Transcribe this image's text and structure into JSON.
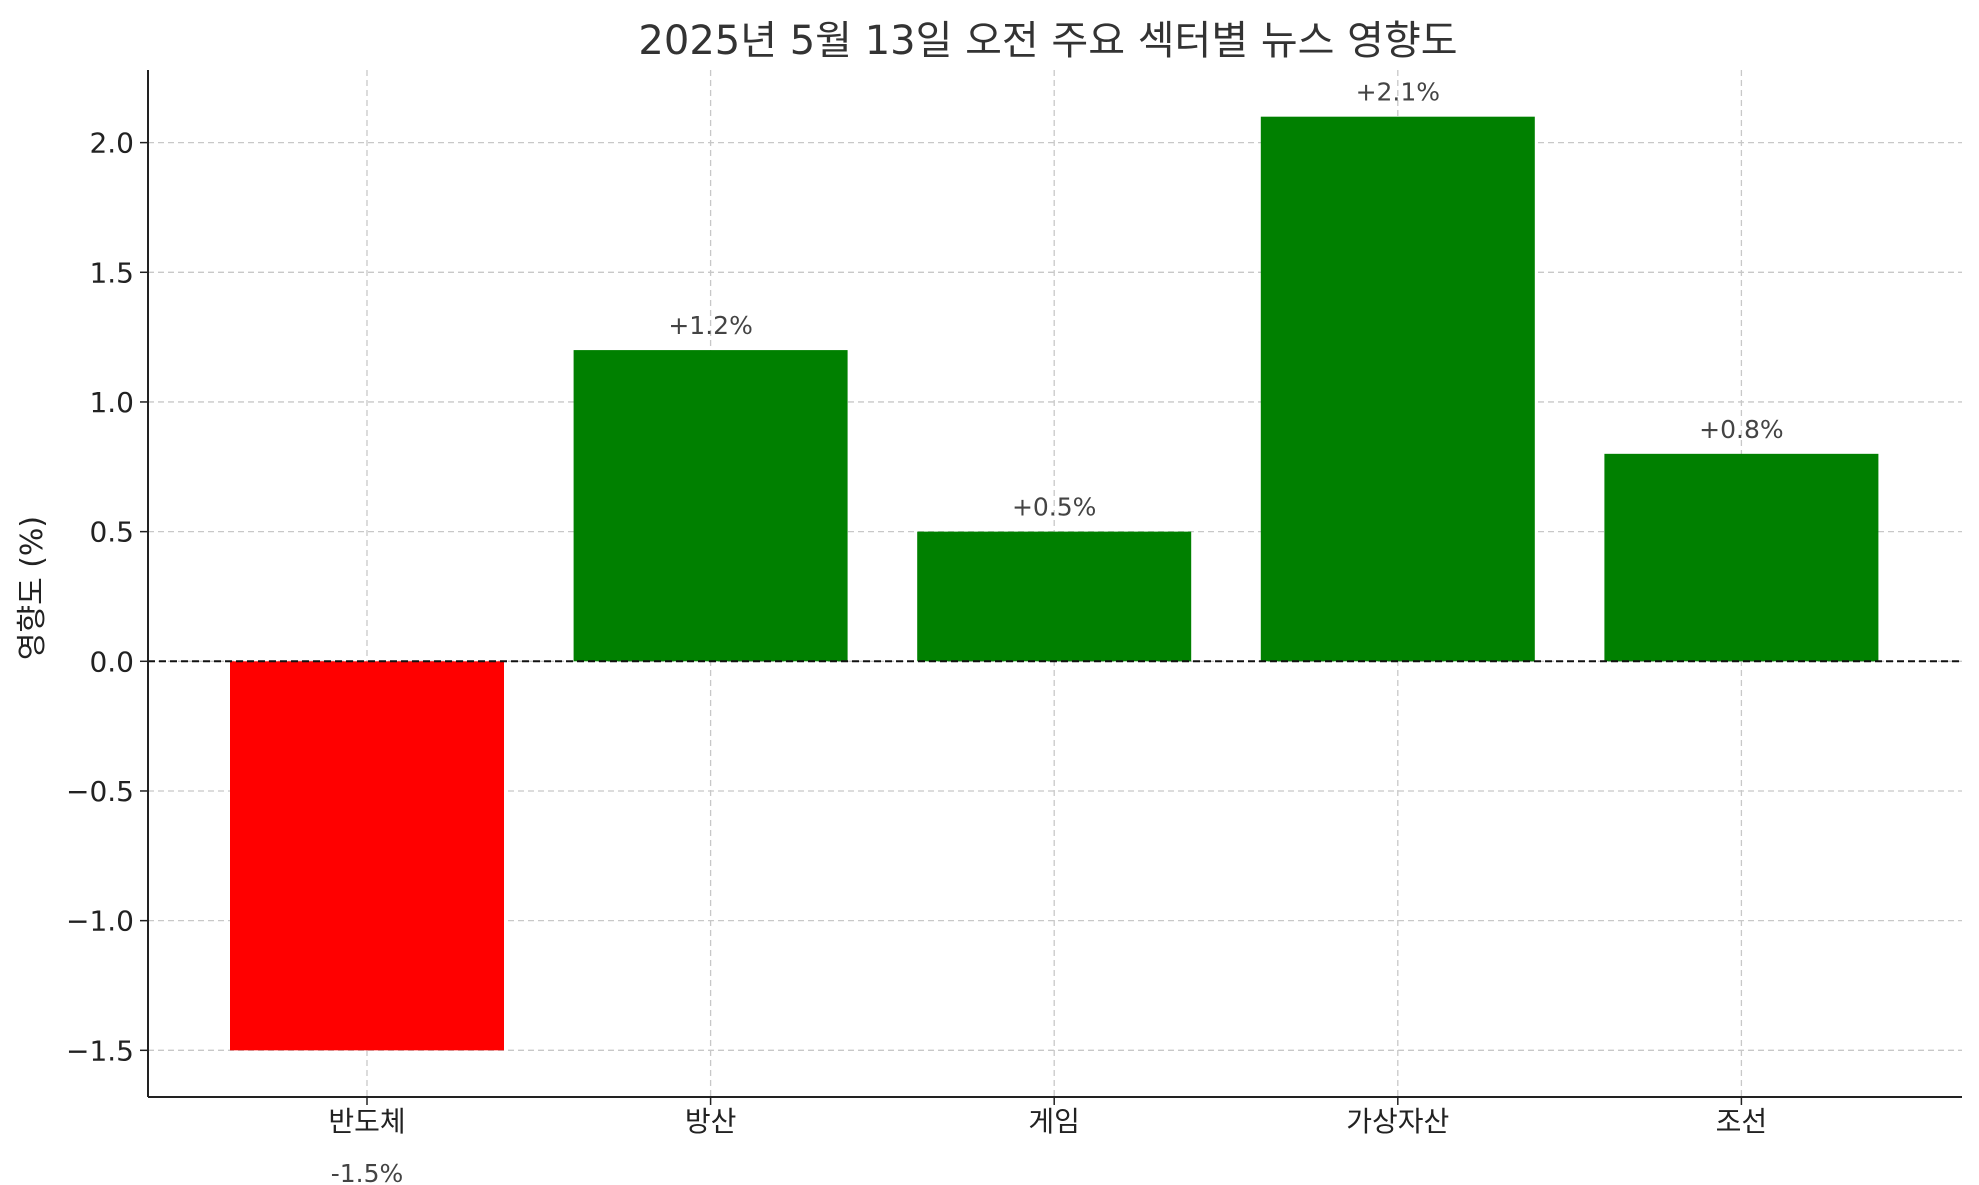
{
  "chart_data": {
    "type": "bar",
    "title": "2025년 5월 13일 오전 주요 섹터별 뉴스 영향도",
    "xlabel": "",
    "ylabel": "영향도 (%)",
    "categories": [
      "반도체",
      "방산",
      "게임",
      "가상자산",
      "조선"
    ],
    "values": [
      -1.5,
      1.2,
      0.5,
      2.1,
      0.8
    ],
    "data_labels": [
      "-1.5%",
      "+1.2%",
      "+0.5%",
      "+2.1%",
      "+0.8%"
    ],
    "colors": [
      "#ff0000",
      "#008000",
      "#008000",
      "#008000",
      "#008000"
    ],
    "ylim": [
      -1.68,
      2.28
    ],
    "yticks": [
      -1.5,
      -1.0,
      -0.5,
      0.0,
      0.5,
      1.0,
      1.5,
      2.0
    ],
    "ytick_labels": [
      "−1.5",
      "−1.0",
      "−0.5",
      "0.0",
      "0.5",
      "1.0",
      "1.5",
      "2.0"
    ],
    "grid": true,
    "zero_line": true
  }
}
